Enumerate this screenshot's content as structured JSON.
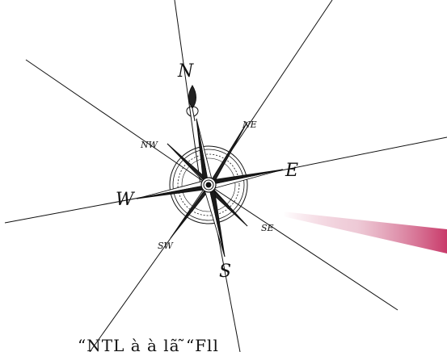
{
  "compass": {
    "labels": {
      "north": "N",
      "northeast": "NE",
      "east": "E",
      "southeast": "SE",
      "south": "S",
      "southwest": "SW",
      "west": "W",
      "northwest": "NW"
    }
  },
  "bottom_text": "“NTL à à lã ̃“Fll",
  "colors": {
    "ink": "#111111",
    "ribbon": "#c93a6a",
    "background": "#ffffff"
  }
}
